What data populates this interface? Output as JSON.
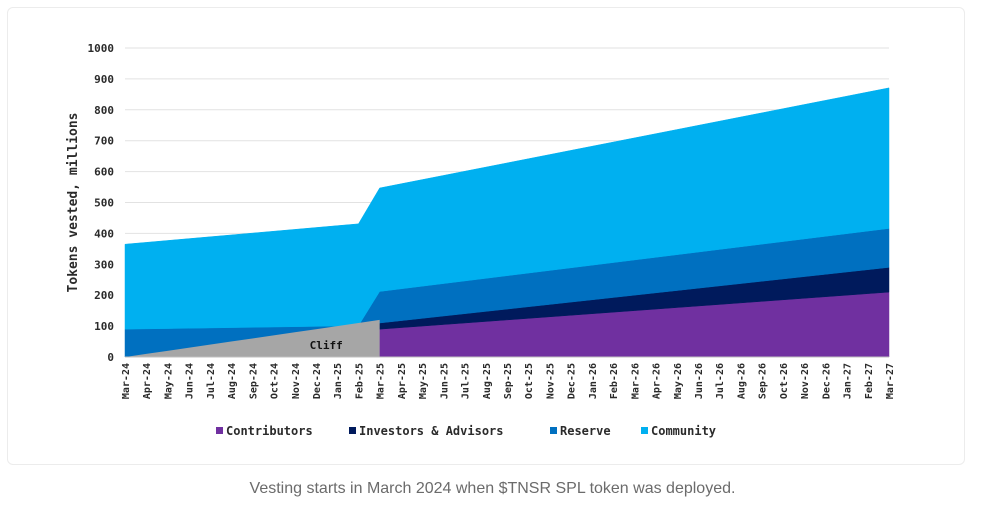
{
  "chart_data": {
    "type": "area",
    "ylabel": "Tokens vested, millions",
    "xlabel": "",
    "ylim": [
      0,
      1000
    ],
    "yticks": [
      0,
      100,
      200,
      300,
      400,
      500,
      600,
      700,
      800,
      900,
      1000
    ],
    "grid": true,
    "legend_position": "bottom",
    "categories": [
      "Mar-24",
      "Apr-24",
      "May-24",
      "Jun-24",
      "Jul-24",
      "Aug-24",
      "Sep-24",
      "Oct-24",
      "Nov-24",
      "Dec-24",
      "Jan-25",
      "Feb-25",
      "Mar-25",
      "Apr-25",
      "May-25",
      "Jun-25",
      "Jul-25",
      "Aug-25",
      "Sep-25",
      "Oct-25",
      "Nov-25",
      "Dec-25",
      "Jan-26",
      "Feb-26",
      "Mar-26",
      "Apr-26",
      "May-26",
      "Jun-26",
      "Jul-26",
      "Aug-26",
      "Sep-26",
      "Oct-26",
      "Nov-26",
      "Dec-26",
      "Jan-27",
      "Feb-27",
      "Mar-27"
    ],
    "stacked": true,
    "series": [
      {
        "name": "Contributors",
        "color": "#7030a0",
        "values": [
          0,
          0,
          0,
          0,
          0,
          0,
          0,
          0,
          0,
          0,
          0,
          0,
          90,
          95,
          100,
          105,
          110,
          115,
          120,
          125,
          130,
          135,
          140,
          145,
          150,
          155,
          160,
          165,
          170,
          175,
          180,
          185,
          190,
          195,
          200,
          205,
          210
        ]
      },
      {
        "name": "Investors & Advisors",
        "color": "#001a5c",
        "values": [
          0,
          0,
          0,
          0,
          0,
          0,
          0,
          0,
          0,
          0,
          0,
          0,
          20,
          22.5,
          25,
          27.5,
          30,
          32.5,
          35,
          37.5,
          40,
          42.5,
          45,
          47.5,
          50,
          52.5,
          55,
          57.5,
          60,
          62.5,
          65,
          67.5,
          70,
          72.5,
          75,
          77.5,
          80
        ]
      },
      {
        "name": "Reserve",
        "color": "#0070c0",
        "values": [
          90,
          91,
          92,
          93,
          94,
          95,
          96,
          97,
          98,
          99,
          100,
          101,
          102,
          103,
          104,
          105,
          106,
          107,
          108,
          109,
          110,
          111,
          112,
          113,
          114,
          115,
          116,
          117,
          118,
          119,
          120,
          121,
          122,
          123,
          124,
          125,
          126
        ]
      },
      {
        "name": "Community",
        "color": "#00b0f0",
        "values": [
          275,
          280,
          285,
          290,
          295,
          300,
          305,
          310,
          315,
          320,
          325,
          330,
          335,
          340,
          345,
          350,
          355,
          360,
          365,
          370,
          375,
          380,
          385,
          390,
          395,
          400,
          405,
          410,
          415,
          420,
          425,
          430,
          435,
          440,
          445,
          450,
          455
        ]
      }
    ],
    "cliff": {
      "label": "Cliff",
      "color": "#a6a6a6",
      "from": "Mar-24",
      "to": "Mar-25",
      "values": [
        0,
        10,
        20,
        30,
        40,
        50,
        60,
        70,
        80,
        90,
        100,
        110,
        120
      ]
    }
  },
  "caption": "Vesting starts in March 2024 when $TNSR SPL token was deployed."
}
